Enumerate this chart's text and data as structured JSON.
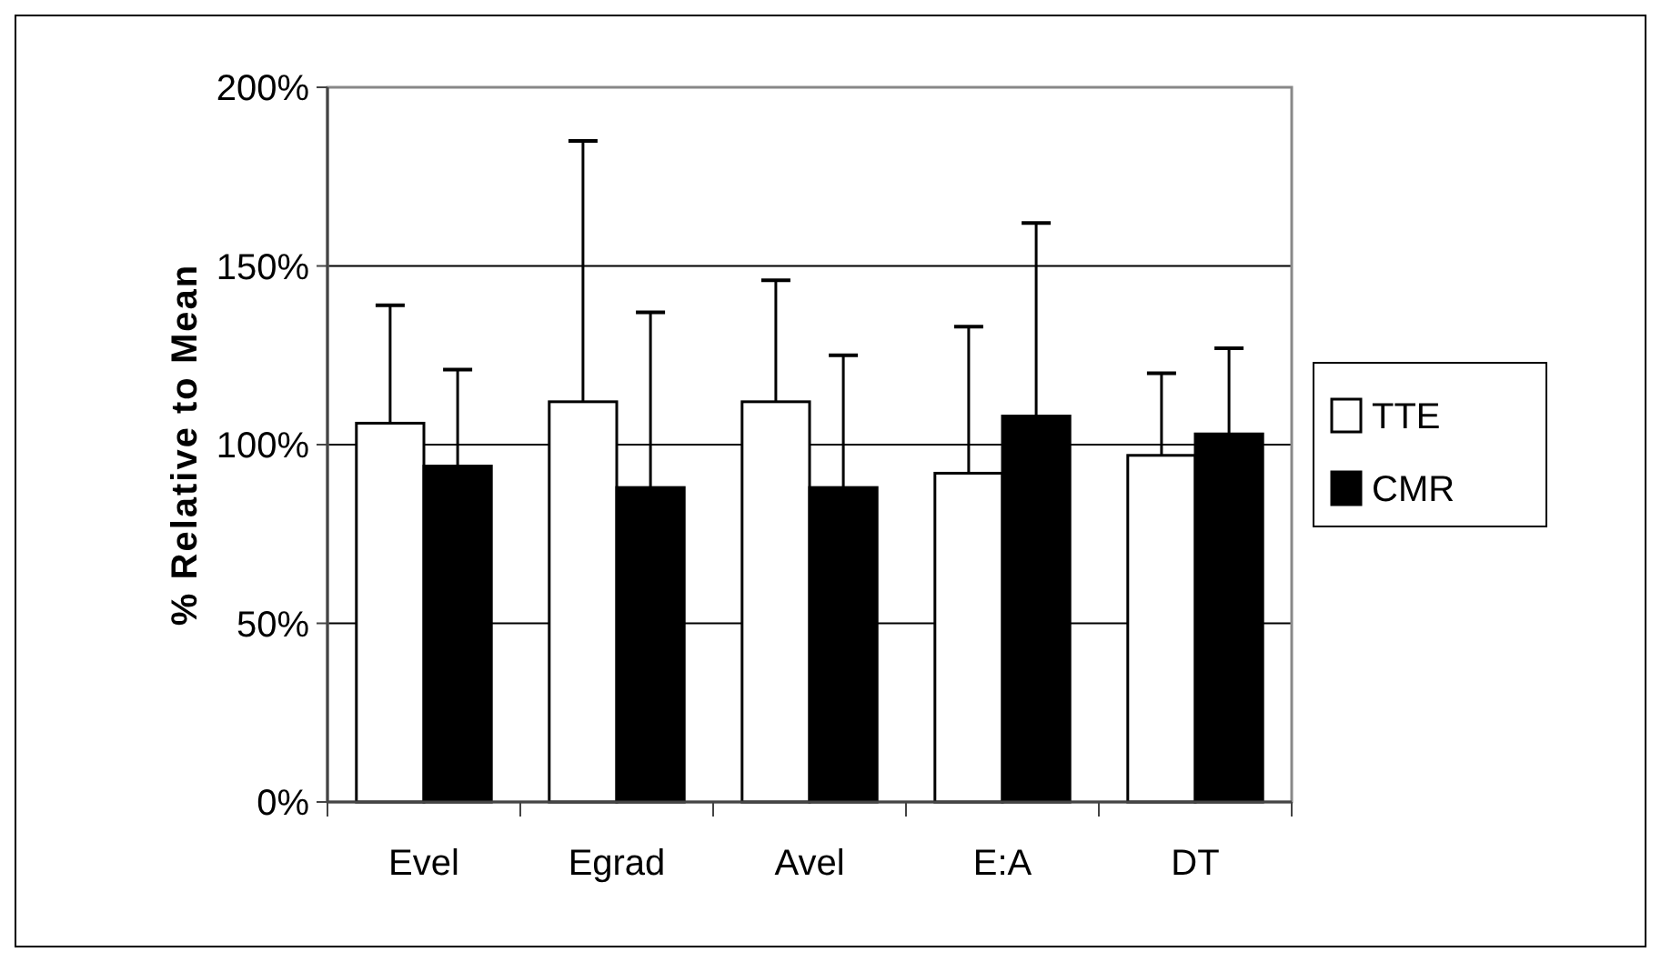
{
  "chart_data": {
    "type": "bar",
    "ylabel": "% Relative to Mean",
    "categories": [
      "Evel",
      "Egrad",
      "Avel",
      "E:A",
      "DT"
    ],
    "series": [
      {
        "name": "TTE",
        "color": "#ffffff",
        "values": [
          106,
          112,
          112,
          92,
          97
        ],
        "errors": [
          [
            106,
            139
          ],
          [
            112,
            185
          ],
          [
            112,
            146
          ],
          [
            92,
            133
          ],
          [
            97,
            120
          ]
        ]
      },
      {
        "name": "CMR",
        "color": "#000000",
        "values": [
          94,
          88,
          88,
          108,
          103
        ],
        "errors": [
          [
            94,
            121
          ],
          [
            88,
            137
          ],
          [
            88,
            125
          ],
          [
            108,
            162
          ],
          [
            103,
            127
          ]
        ]
      }
    ],
    "ylim": [
      0,
      200
    ],
    "yticks": [
      {
        "value": 0,
        "label": "0%"
      },
      {
        "value": 50,
        "label": "50%"
      },
      {
        "value": 100,
        "label": "100%"
      },
      {
        "value": 150,
        "label": "150%"
      },
      {
        "value": 200,
        "label": "200%"
      }
    ],
    "grid": "y",
    "legend": "right"
  }
}
